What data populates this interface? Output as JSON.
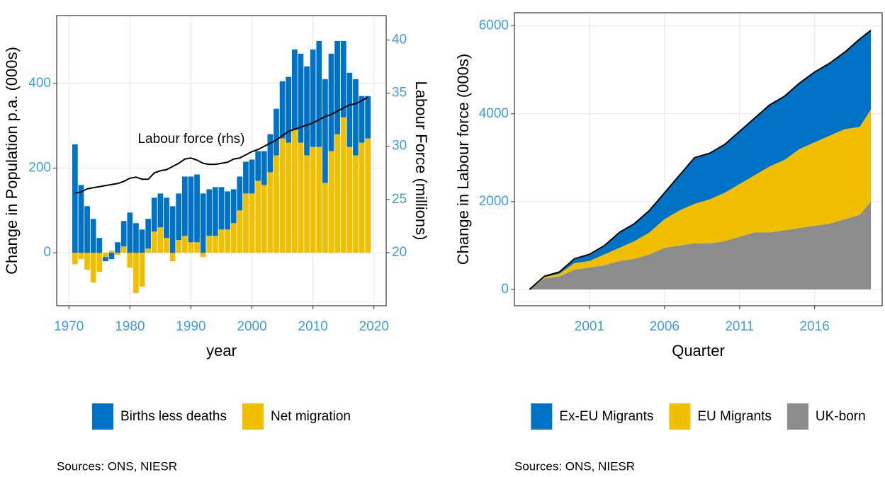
{
  "chart_data": [
    {
      "type": "bar",
      "stacked": true,
      "xlabel": "year",
      "ylabel": "Change in Population p.a. (000s)",
      "y2label": "Labour Force (millions)",
      "annotation": "Labour force (rhs)",
      "note": "Sources: ONS, NIESR",
      "legend": "bottom",
      "grid": true,
      "x": [
        1971,
        1972,
        1973,
        1974,
        1975,
        1976,
        1977,
        1978,
        1979,
        1980,
        1981,
        1982,
        1983,
        1984,
        1985,
        1986,
        1987,
        1988,
        1989,
        1990,
        1991,
        1992,
        1993,
        1994,
        1995,
        1996,
        1997,
        1998,
        1999,
        2000,
        2001,
        2002,
        2003,
        2004,
        2005,
        2006,
        2007,
        2008,
        2009,
        2010,
        2011,
        2012,
        2013,
        2014,
        2015,
        2016,
        2017,
        2018,
        2019
      ],
      "series": [
        {
          "name": "Births less deaths",
          "color": "#0072c6",
          "values": [
            256,
            160,
            110,
            80,
            35,
            -10,
            -15,
            25,
            60,
            95,
            70,
            55,
            70,
            80,
            80,
            95,
            110,
            110,
            140,
            155,
            160,
            140,
            110,
            115,
            100,
            90,
            80,
            80,
            75,
            80,
            70,
            80,
            90,
            110,
            135,
            155,
            190,
            210,
            210,
            230,
            250,
            245,
            230,
            220,
            180,
            175,
            180,
            110,
            100
          ]
        },
        {
          "name": "Net migration",
          "color": "#f0c000",
          "values": [
            -27,
            -15,
            -40,
            -70,
            -45,
            -10,
            5,
            -5,
            15,
            -35,
            -95,
            -80,
            10,
            50,
            60,
            35,
            -20,
            30,
            40,
            25,
            25,
            -10,
            40,
            40,
            55,
            55,
            70,
            100,
            140,
            140,
            170,
            160,
            190,
            230,
            270,
            260,
            290,
            260,
            230,
            250,
            250,
            165,
            240,
            280,
            320,
            250,
            230,
            260,
            270
          ]
        },
        {
          "type": "line",
          "axis": "y2",
          "color": "#000000",
          "values": [
            25.6,
            25.7,
            26.0,
            26.1,
            26.2,
            26.3,
            26.4,
            26.5,
            26.7,
            27.0,
            27.1,
            26.9,
            26.9,
            27.5,
            27.7,
            27.8,
            28.1,
            28.4,
            28.8,
            28.9,
            28.7,
            28.4,
            28.3,
            28.3,
            28.4,
            28.5,
            28.8,
            28.9,
            29.2,
            29.5,
            29.7,
            30.0,
            30.3,
            30.6,
            31.0,
            31.4,
            31.6,
            31.8,
            32.0,
            32.2,
            32.5,
            32.8,
            33.0,
            33.3,
            33.6,
            33.9,
            34.0,
            34.3,
            34.6
          ]
        }
      ],
      "xlim": [
        1968,
        2022
      ],
      "xticks": [
        1970,
        1980,
        1990,
        2000,
        2010,
        2020
      ],
      "ylim": [
        -125,
        560
      ],
      "yticks": [
        0,
        200,
        400
      ],
      "y2lim": [
        15,
        42.3
      ],
      "y2ticks": [
        20,
        25,
        30,
        35,
        40
      ]
    },
    {
      "type": "area",
      "stacked": true,
      "xlabel": "Quarter",
      "ylabel": "Change in Labour force (000s)",
      "note": "Sources: ONS, NIESR",
      "legend": "bottom",
      "grid": true,
      "x": [
        1997,
        1998,
        1999,
        2000,
        2001,
        2002,
        2003,
        2004,
        2005,
        2006,
        2007,
        2008,
        2009,
        2010,
        2011,
        2012,
        2013,
        2014,
        2015,
        2016,
        2017,
        2018,
        2019,
        2019.75
      ],
      "series": [
        {
          "name": "Ex-EU Migrants",
          "color": "#0072c6",
          "values": [
            0,
            20,
            40,
            100,
            150,
            200,
            350,
            400,
            500,
            600,
            800,
            1050,
            1050,
            1100,
            1200,
            1300,
            1400,
            1450,
            1500,
            1600,
            1650,
            1750,
            2000,
            1800
          ]
        },
        {
          "name": "EU Migrants",
          "color": "#f0c000",
          "values": [
            0,
            30,
            60,
            150,
            150,
            250,
            300,
            400,
            500,
            650,
            800,
            900,
            1000,
            1100,
            1200,
            1300,
            1500,
            1600,
            1800,
            1900,
            2000,
            2050,
            2000,
            2100
          ]
        },
        {
          "name": "UK-born",
          "color": "#8c8c8c",
          "values": [
            0,
            250,
            300,
            450,
            500,
            550,
            650,
            700,
            800,
            950,
            1000,
            1050,
            1050,
            1100,
            1200,
            1300,
            1300,
            1350,
            1400,
            1450,
            1500,
            1600,
            1700,
            2000
          ]
        }
      ],
      "xlim": [
        1996,
        2020.5
      ],
      "xticks": [
        2001,
        2006,
        2011,
        2016
      ],
      "ylim": [
        -370,
        6300
      ],
      "yticks": [
        0,
        2000,
        4000,
        6000
      ]
    }
  ]
}
